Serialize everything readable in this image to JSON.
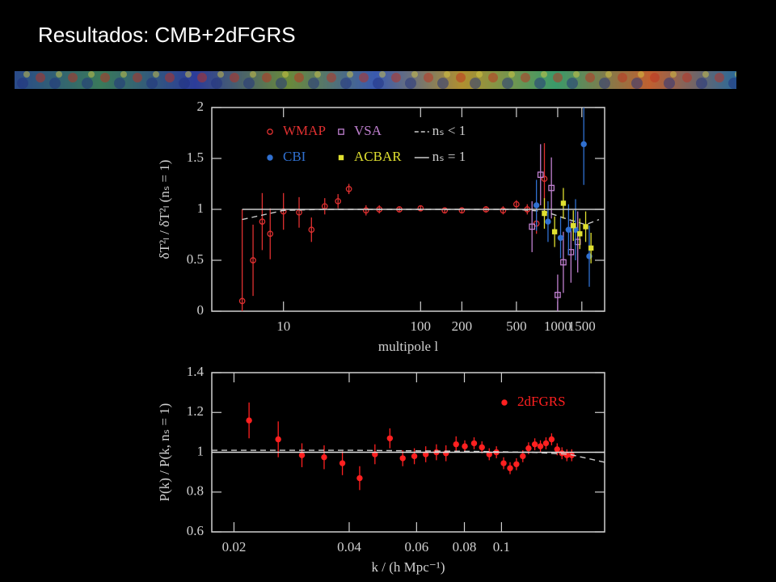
{
  "title": "Resultados: CMB+2dFGRS",
  "chart_data": [
    {
      "type": "scatter",
      "xlabel": "multipole l",
      "ylabel": "δT²ₗ / δT²ₗ (nₛ = 1)",
      "xscale": "log",
      "xlim": [
        3,
        2200
      ],
      "ylim": [
        0,
        2
      ],
      "xticks": [
        10,
        100,
        200,
        500,
        1000,
        1500
      ],
      "yticks": [
        0,
        0.5,
        1,
        1.5,
        2
      ],
      "grid": false,
      "series": [
        {
          "name": "WMAP",
          "color": "#e03030",
          "marker": "open-circle",
          "x": [
            5,
            6,
            7,
            8,
            10,
            13,
            16,
            20,
            25,
            30,
            40,
            50,
            70,
            100,
            150,
            200,
            300,
            400,
            500,
            600,
            700,
            800
          ],
          "values": [
            0.1,
            0.5,
            0.88,
            0.76,
            0.98,
            0.97,
            0.8,
            1.03,
            1.08,
            1.2,
            0.99,
            1.0,
            1.0,
            1.01,
            0.99,
            0.99,
            1.0,
            0.99,
            1.05,
            1.0,
            0.86,
            1.3
          ],
          "errors": [
            0.9,
            0.35,
            0.28,
            0.25,
            0.18,
            0.15,
            0.12,
            0.08,
            0.07,
            0.05,
            0.05,
            0.04,
            0.03,
            0.03,
            0.03,
            0.03,
            0.03,
            0.04,
            0.04,
            0.05,
            0.1,
            0.35
          ]
        },
        {
          "name": "VSA",
          "color": "#c080d0",
          "marker": "open-square",
          "x": [
            650,
            750,
            900,
            1000,
            1100,
            1250,
            1400
          ],
          "values": [
            0.83,
            1.34,
            1.21,
            0.16,
            0.48,
            0.58,
            0.68
          ],
          "errors": [
            0.25,
            0.3,
            0.3,
            0.2,
            0.3,
            0.3,
            0.3
          ]
        },
        {
          "name": "nₛ < 1",
          "color": "#cccccc",
          "line": "dashed",
          "x": [
            5,
            10,
            20,
            100,
            500,
            800,
            1200,
            1600,
            2000
          ],
          "values": [
            0.9,
            0.99,
            1.0,
            1.0,
            1.0,
            0.98,
            0.9,
            0.85,
            0.9
          ]
        },
        {
          "name": "CBI",
          "color": "#3070d0",
          "marker": "circle",
          "x": [
            700,
            850,
            1050,
            1200,
            1350,
            1550,
            1700
          ],
          "values": [
            1.04,
            0.88,
            0.72,
            0.8,
            0.8,
            1.64,
            0.54
          ],
          "errors": [
            0.25,
            0.2,
            0.2,
            0.25,
            0.3,
            0.4,
            0.3
          ]
        },
        {
          "name": "ACBAR",
          "color": "#e0e030",
          "marker": "square",
          "x": [
            800,
            950,
            1100,
            1300,
            1450,
            1600,
            1750
          ],
          "values": [
            0.96,
            0.78,
            1.06,
            0.84,
            0.76,
            0.83,
            0.62
          ],
          "errors": [
            0.15,
            0.15,
            0.15,
            0.15,
            0.15,
            0.15,
            0.15
          ]
        },
        {
          "name": "nₛ = 1",
          "color": "#cccccc",
          "line": "solid",
          "x": [
            5,
            2200
          ],
          "values": [
            1,
            1
          ]
        }
      ]
    },
    {
      "type": "scatter",
      "xlabel": "k / (h Mpc⁻¹)",
      "ylabel": "P(k) / P(k, nₛ = 1)",
      "xscale": "log",
      "xlim": [
        0.0175,
        0.186
      ],
      "ylim": [
        0.6,
        1.4
      ],
      "xticks": [
        0.02,
        0.04,
        0.06,
        0.08,
        0.1
      ],
      "yticks": [
        0.6,
        0.8,
        1,
        1.2,
        1.4
      ],
      "grid": false,
      "series": [
        {
          "name": "2dFGRS",
          "color": "#ff2020",
          "marker": "circle",
          "x": [
            0.0219,
            0.0261,
            0.0301,
            0.0344,
            0.0384,
            0.0426,
            0.0467,
            0.0511,
            0.0552,
            0.0592,
            0.0634,
            0.0676,
            0.0716,
            0.0761,
            0.0802,
            0.0848,
            0.0889,
            0.0929,
            0.097,
            0.1013,
            0.1053,
            0.1094,
            0.1137,
            0.1177,
            0.1222,
            0.1264,
            0.1307,
            0.1352,
            0.1398,
            0.1439,
            0.1482,
            0.1526
          ],
          "values": [
            1.16,
            1.065,
            0.985,
            0.975,
            0.945,
            0.87,
            0.99,
            1.07,
            0.97,
            0.98,
            0.99,
            1.0,
            0.995,
            1.04,
            1.03,
            1.045,
            1.025,
            0.99,
            1.0,
            0.945,
            0.92,
            0.94,
            0.98,
            1.02,
            1.04,
            1.03,
            1.045,
            1.065,
            1.015,
            0.995,
            0.985,
            0.985
          ],
          "errors": [
            0.09,
            0.09,
            0.06,
            0.06,
            0.06,
            0.06,
            0.05,
            0.05,
            0.04,
            0.04,
            0.04,
            0.04,
            0.04,
            0.04,
            0.03,
            0.03,
            0.03,
            0.03,
            0.03,
            0.03,
            0.03,
            0.03,
            0.03,
            0.03,
            0.03,
            0.03,
            0.03,
            0.03,
            0.03,
            0.03,
            0.03,
            0.03
          ]
        },
        {
          "name": null,
          "color": "#cccccc",
          "line": "dashed",
          "x": [
            0.0175,
            0.04,
            0.08,
            0.12,
            0.15,
            0.186
          ],
          "values": [
            1.01,
            1.01,
            1.005,
            1.0,
            0.99,
            0.95
          ]
        },
        {
          "name": null,
          "color": "#dddddd",
          "line": "solid",
          "x": [
            0.0175,
            0.186
          ],
          "values": [
            1,
            1
          ]
        }
      ]
    }
  ]
}
